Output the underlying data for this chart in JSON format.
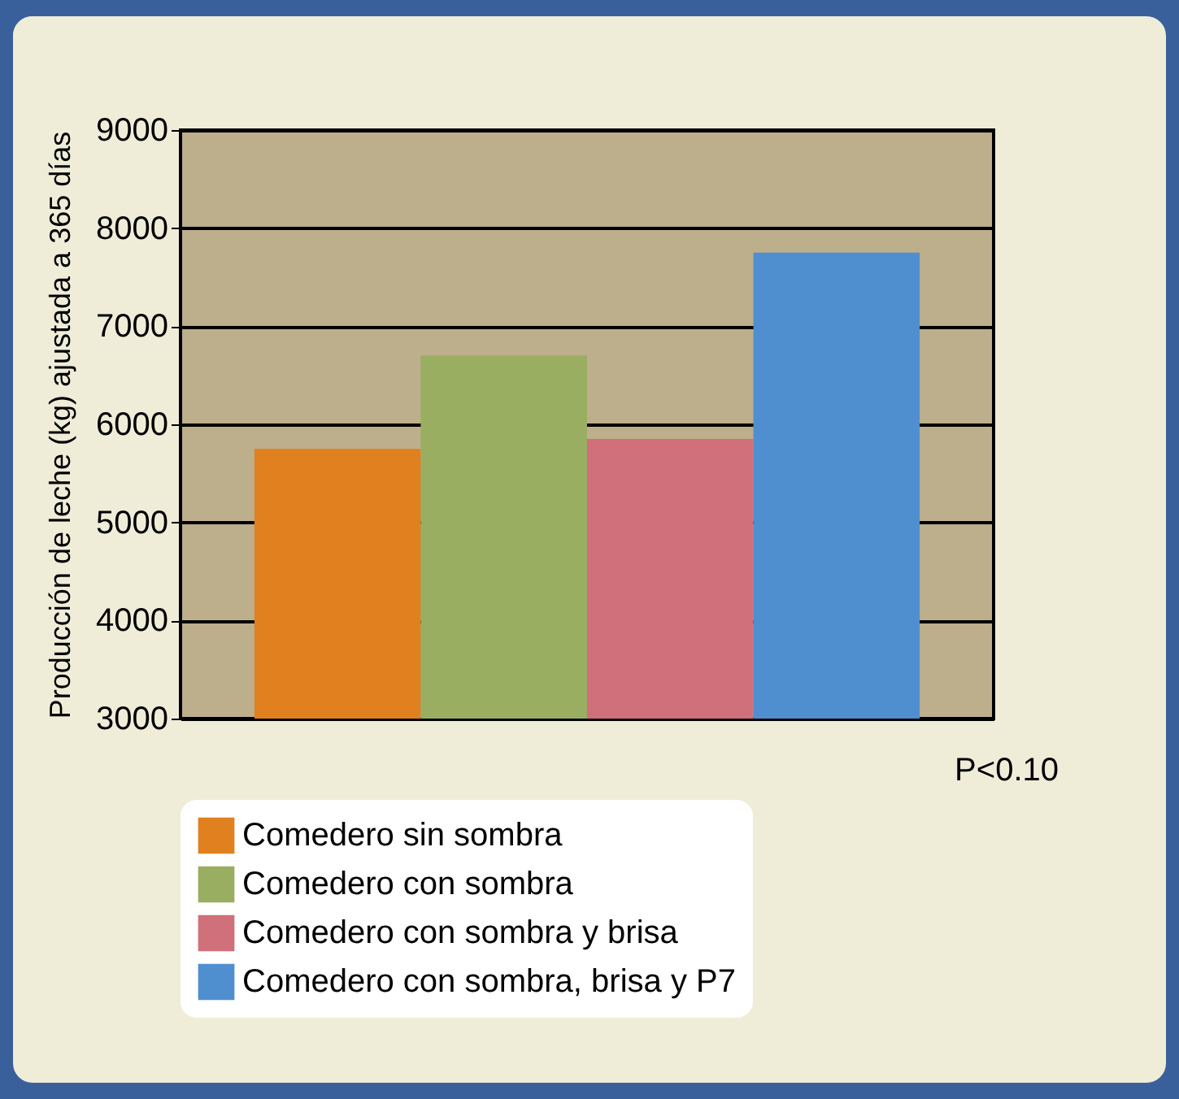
{
  "chart_data": {
    "type": "bar",
    "ylabel": "Producción de leche (kg) ajustada a 365 días",
    "categories": [
      null
    ],
    "series": [
      {
        "name": "Comedero sin sombra",
        "color": "#e0801f",
        "values": [
          5750
        ]
      },
      {
        "name": "Comedero con sombra",
        "color": "#9aae62",
        "values": [
          6700
        ]
      },
      {
        "name": "Comedero con sombra y brisa",
        "color": "#d0707a",
        "values": [
          5850
        ]
      },
      {
        "name": "Comedero con sombra, brisa y P7",
        "color": "#4f8fd0",
        "values": [
          7750
        ]
      }
    ],
    "ylim": [
      3000,
      9000
    ],
    "yticks": [
      3000,
      4000,
      5000,
      6000,
      7000,
      8000,
      9000
    ],
    "grid": "y",
    "legend": "bottom",
    "tick_labels": "y",
    "annotations": [
      "P<0.10"
    ]
  }
}
